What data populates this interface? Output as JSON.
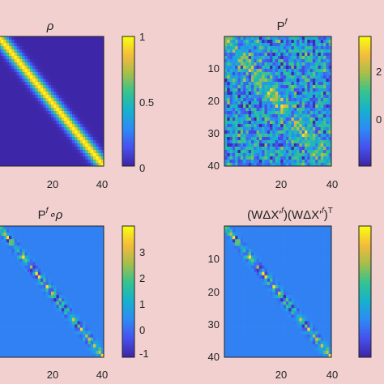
{
  "chart_data": [
    {
      "type": "heatmap",
      "title": "ρ",
      "size": 40,
      "pattern": "banded-correlation",
      "diagonal_value": 1,
      "off_band_value": 0,
      "x_tick_labels": [
        "20",
        "40"
      ],
      "y_tick_labels": [],
      "colorbar": {
        "range": [
          0,
          1
        ],
        "tick_labels": [
          "1",
          "0.5",
          "0"
        ]
      },
      "colormap": [
        "#3e26a8",
        "#4653f0",
        "#2c8bf4",
        "#16b1cd",
        "#35c38e",
        "#a4be4b",
        "#f3bb3c",
        "#f9fb0e"
      ]
    },
    {
      "type": "heatmap",
      "title": "P",
      "title_sup": "f",
      "size": 40,
      "pattern": "noisy-sample-covariance",
      "x_tick_labels": [
        "20",
        "40"
      ],
      "y_tick_labels": [
        "10",
        "20",
        "30",
        "40"
      ],
      "colorbar": {
        "range": [
          -1,
          2.6
        ],
        "tick_labels": [
          "2",
          "0"
        ]
      },
      "colormap": [
        "#3e26a8",
        "#4653f0",
        "#2c8bf4",
        "#16b1cd",
        "#35c38e",
        "#a4be4b",
        "#f3bb3c",
        "#f9fb0e"
      ]
    },
    {
      "type": "heatmap",
      "title": "P",
      "title_sup": "f",
      "title_suffix": "∘ρ",
      "size": 40,
      "pattern": "localized-covariance",
      "x_tick_labels": [
        "20",
        "40"
      ],
      "y_tick_labels": [],
      "colorbar": {
        "range": [
          -1.3,
          3.7
        ],
        "tick_labels": [
          "3",
          "2",
          "1",
          "0",
          "-1"
        ]
      },
      "colormap": [
        "#3e26a8",
        "#4653f0",
        "#2c8bf4",
        "#16b1cd",
        "#35c38e",
        "#a4be4b",
        "#f3bb3c",
        "#f9fb0e"
      ]
    },
    {
      "type": "heatmap",
      "title": "(WΔX′",
      "title_sup": "f",
      "title_mid": ")(WΔX′",
      "title_sup2": "f",
      "title_end": ")",
      "title_sup3": "T",
      "size": 40,
      "pattern": "localized-covariance",
      "x_tick_labels": [
        "20",
        "40"
      ],
      "y_tick_labels": [
        "10",
        "20",
        "30",
        "40"
      ],
      "colorbar": {
        "range": [
          -1.3,
          3.7
        ],
        "tick_labels": []
      },
      "colormap": [
        "#3e26a8",
        "#4653f0",
        "#2c8bf4",
        "#16b1cd",
        "#35c38e",
        "#a4be4b",
        "#f3bb3c",
        "#f9fb0e"
      ]
    }
  ]
}
